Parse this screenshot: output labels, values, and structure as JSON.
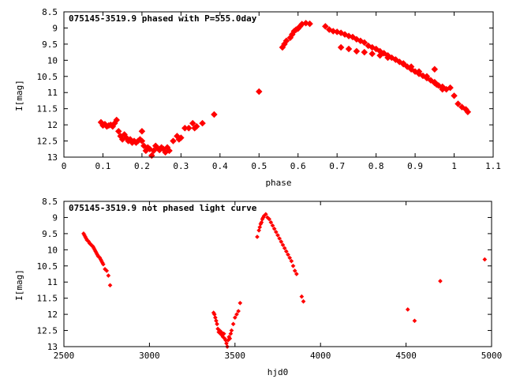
{
  "chart_data": [
    {
      "type": "scatter",
      "title": "075145-3519.9 phased with P=555.0day",
      "xlabel": "phase",
      "ylabel": "I[mag]",
      "xlim": [
        0,
        1.1
      ],
      "ylim": [
        13,
        8.5
      ],
      "y_inverted": true,
      "grid": false,
      "marker_color": "#ff0000",
      "xticks": [
        "0",
        "0.1",
        "0.2",
        "0.3",
        "0.4",
        "0.5",
        "0.6",
        "0.7",
        "0.8",
        "0.9",
        "1",
        "1.1"
      ],
      "yticks": [
        "8.5",
        "9",
        "9.5",
        "10",
        "10.5",
        "11",
        "11.5",
        "12",
        "12.5",
        "13"
      ],
      "points": [
        [
          0.095,
          11.92
        ],
        [
          0.1,
          12.02
        ],
        [
          0.105,
          11.98
        ],
        [
          0.11,
          12.05
        ],
        [
          0.115,
          12.02
        ],
        [
          0.12,
          12.0
        ],
        [
          0.125,
          12.05
        ],
        [
          0.13,
          11.95
        ],
        [
          0.135,
          11.85
        ],
        [
          0.14,
          12.2
        ],
        [
          0.145,
          12.35
        ],
        [
          0.15,
          12.45
        ],
        [
          0.155,
          12.3
        ],
        [
          0.16,
          12.4
        ],
        [
          0.165,
          12.5
        ],
        [
          0.17,
          12.45
        ],
        [
          0.175,
          12.55
        ],
        [
          0.18,
          12.5
        ],
        [
          0.185,
          12.55
        ],
        [
          0.19,
          12.5
        ],
        [
          0.195,
          12.45
        ],
        [
          0.2,
          12.5
        ],
        [
          0.2,
          12.2
        ],
        [
          0.205,
          12.65
        ],
        [
          0.21,
          12.8
        ],
        [
          0.215,
          12.7
        ],
        [
          0.22,
          12.75
        ],
        [
          0.225,
          12.95
        ],
        [
          0.23,
          12.8
        ],
        [
          0.235,
          12.65
        ],
        [
          0.24,
          12.72
        ],
        [
          0.245,
          12.78
        ],
        [
          0.25,
          12.7
        ],
        [
          0.255,
          12.75
        ],
        [
          0.26,
          12.85
        ],
        [
          0.265,
          12.7
        ],
        [
          0.27,
          12.8
        ],
        [
          0.28,
          12.5
        ],
        [
          0.29,
          12.35
        ],
        [
          0.295,
          12.45
        ],
        [
          0.3,
          12.4
        ],
        [
          0.31,
          12.1
        ],
        [
          0.32,
          12.1
        ],
        [
          0.33,
          11.95
        ],
        [
          0.335,
          12.1
        ],
        [
          0.34,
          12.05
        ],
        [
          0.355,
          11.95
        ],
        [
          0.385,
          11.68
        ],
        [
          0.5,
          10.97
        ],
        [
          0.56,
          9.6
        ],
        [
          0.565,
          9.5
        ],
        [
          0.57,
          9.4
        ],
        [
          0.58,
          9.3
        ],
        [
          0.585,
          9.2
        ],
        [
          0.59,
          9.1
        ],
        [
          0.595,
          9.05
        ],
        [
          0.6,
          9.02
        ],
        [
          0.605,
          8.95
        ],
        [
          0.61,
          8.88
        ],
        [
          0.62,
          8.85
        ],
        [
          0.63,
          8.87
        ],
        [
          0.67,
          8.95
        ],
        [
          0.68,
          9.05
        ],
        [
          0.69,
          9.1
        ],
        [
          0.7,
          9.12
        ],
        [
          0.71,
          9.15
        ],
        [
          0.72,
          9.2
        ],
        [
          0.73,
          9.25
        ],
        [
          0.74,
          9.28
        ],
        [
          0.75,
          9.35
        ],
        [
          0.76,
          9.4
        ],
        [
          0.77,
          9.45
        ],
        [
          0.78,
          9.55
        ],
        [
          0.79,
          9.6
        ],
        [
          0.8,
          9.65
        ],
        [
          0.81,
          9.72
        ],
        [
          0.82,
          9.78
        ],
        [
          0.83,
          9.85
        ],
        [
          0.84,
          9.92
        ],
        [
          0.85,
          9.98
        ],
        [
          0.86,
          10.05
        ],
        [
          0.87,
          10.12
        ],
        [
          0.88,
          10.2
        ],
        [
          0.89,
          10.28
        ],
        [
          0.9,
          10.35
        ],
        [
          0.91,
          10.42
        ],
        [
          0.92,
          10.48
        ],
        [
          0.93,
          10.55
        ],
        [
          0.94,
          10.62
        ],
        [
          0.95,
          10.7
        ],
        [
          0.96,
          10.78
        ],
        [
          0.97,
          10.85
        ],
        [
          0.98,
          10.9
        ],
        [
          0.99,
          10.85
        ],
        [
          0.71,
          9.6
        ],
        [
          0.73,
          9.65
        ],
        [
          0.75,
          9.72
        ],
        [
          0.77,
          9.75
        ],
        [
          0.79,
          9.8
        ],
        [
          0.81,
          9.85
        ],
        [
          0.83,
          9.92
        ],
        [
          0.85,
          9.98
        ],
        [
          0.87,
          10.1
        ],
        [
          0.89,
          10.2
        ],
        [
          0.91,
          10.35
        ],
        [
          0.93,
          10.5
        ],
        [
          0.95,
          10.68
        ],
        [
          0.97,
          10.82
        ],
        [
          0.95,
          10.28
        ],
        [
          0.955,
          10.75
        ],
        [
          0.97,
          10.9
        ],
        [
          1.0,
          11.1
        ],
        [
          1.01,
          11.35
        ],
        [
          1.02,
          11.45
        ],
        [
          1.03,
          11.52
        ],
        [
          1.035,
          11.6
        ]
      ]
    },
    {
      "type": "scatter",
      "title": "075145-3519.9 not phased light curve",
      "xlabel": "hjd0",
      "ylabel": "I[mag]",
      "xlim": [
        2500,
        5000
      ],
      "ylim": [
        13,
        8.5
      ],
      "y_inverted": true,
      "grid": false,
      "marker_color": "#ff0000",
      "xticks": [
        "2500",
        "3000",
        "3500",
        "4000",
        "4500",
        "5000"
      ],
      "yticks": [
        "8.5",
        "9",
        "9.5",
        "10",
        "10.5",
        "11",
        "11.5",
        "12",
        "12.5",
        "13"
      ],
      "points": [
        [
          2615,
          9.5
        ],
        [
          2620,
          9.55
        ],
        [
          2625,
          9.6
        ],
        [
          2630,
          9.65
        ],
        [
          2635,
          9.7
        ],
        [
          2640,
          9.72
        ],
        [
          2645,
          9.75
        ],
        [
          2650,
          9.8
        ],
        [
          2655,
          9.82
        ],
        [
          2660,
          9.85
        ],
        [
          2665,
          9.88
        ],
        [
          2670,
          9.9
        ],
        [
          2675,
          9.95
        ],
        [
          2680,
          10.0
        ],
        [
          2685,
          10.05
        ],
        [
          2690,
          10.1
        ],
        [
          2695,
          10.15
        ],
        [
          2700,
          10.2
        ],
        [
          2705,
          10.22
        ],
        [
          2710,
          10.25
        ],
        [
          2715,
          10.3
        ],
        [
          2720,
          10.35
        ],
        [
          2725,
          10.4
        ],
        [
          2730,
          10.45
        ],
        [
          2740,
          10.6
        ],
        [
          2750,
          10.65
        ],
        [
          2760,
          10.8
        ],
        [
          2770,
          11.1
        ],
        [
          3375,
          11.95
        ],
        [
          3380,
          12.0
        ],
        [
          3385,
          12.1
        ],
        [
          3390,
          12.2
        ],
        [
          3395,
          12.3
        ],
        [
          3400,
          12.45
        ],
        [
          3405,
          12.55
        ],
        [
          3410,
          12.5
        ],
        [
          3415,
          12.6
        ],
        [
          3420,
          12.55
        ],
        [
          3425,
          12.65
        ],
        [
          3430,
          12.7
        ],
        [
          3435,
          12.6
        ],
        [
          3440,
          12.75
        ],
        [
          3445,
          12.8
        ],
        [
          3450,
          12.9
        ],
        [
          3455,
          13.0
        ],
        [
          3460,
          12.8
        ],
        [
          3465,
          12.7
        ],
        [
          3470,
          12.75
        ],
        [
          3475,
          12.6
        ],
        [
          3480,
          12.5
        ],
        [
          3490,
          12.3
        ],
        [
          3500,
          12.1
        ],
        [
          3510,
          12.0
        ],
        [
          3520,
          11.9
        ],
        [
          3530,
          11.65
        ],
        [
          3630,
          9.6
        ],
        [
          3640,
          9.4
        ],
        [
          3645,
          9.3
        ],
        [
          3650,
          9.2
        ],
        [
          3655,
          9.15
        ],
        [
          3660,
          9.05
        ],
        [
          3665,
          9.0
        ],
        [
          3670,
          8.95
        ],
        [
          3680,
          8.9
        ],
        [
          3690,
          9.0
        ],
        [
          3700,
          9.05
        ],
        [
          3710,
          9.15
        ],
        [
          3720,
          9.25
        ],
        [
          3730,
          9.35
        ],
        [
          3740,
          9.45
        ],
        [
          3750,
          9.55
        ],
        [
          3760,
          9.65
        ],
        [
          3770,
          9.75
        ],
        [
          3780,
          9.85
        ],
        [
          3790,
          9.95
        ],
        [
          3800,
          10.05
        ],
        [
          3810,
          10.15
        ],
        [
          3820,
          10.25
        ],
        [
          3830,
          10.35
        ],
        [
          3840,
          10.5
        ],
        [
          3850,
          10.65
        ],
        [
          3860,
          10.75
        ],
        [
          3890,
          11.45
        ],
        [
          3900,
          11.6
        ],
        [
          4510,
          11.85
        ],
        [
          4550,
          12.2
        ],
        [
          4700,
          10.97
        ],
        [
          4960,
          10.3
        ]
      ]
    }
  ]
}
